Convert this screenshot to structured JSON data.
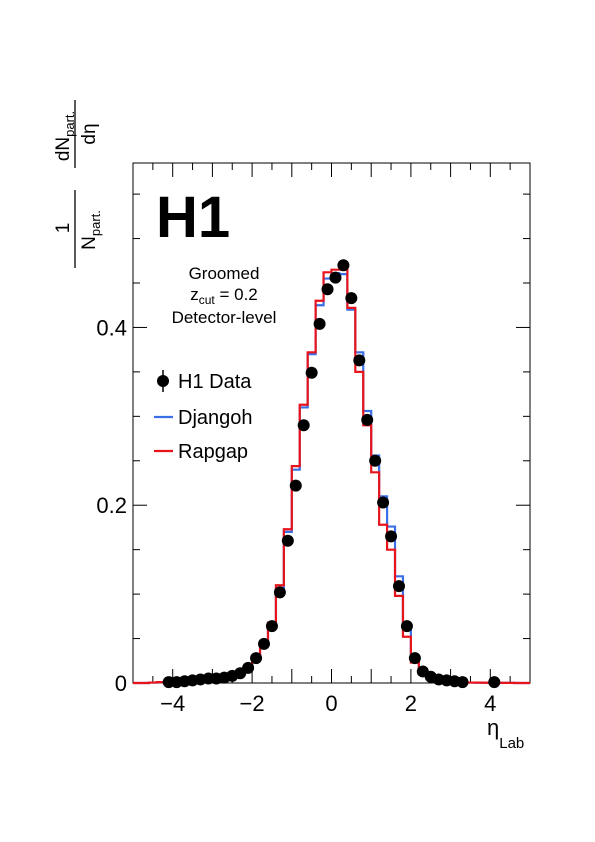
{
  "chart_data": {
    "type": "line",
    "logo": "H1",
    "annotation": {
      "line1": "Groomed",
      "line2_main": "z",
      "line2_sub": "cut",
      "line2_rest": " = 0.2",
      "line3": "Detector-level"
    },
    "xlabel": {
      "main": "η",
      "sub": "Lab"
    },
    "ylabel": {
      "frac1_num": "1",
      "frac1_den_main": "N",
      "frac1_den_sub": "part.",
      "frac2_num_main": "dN",
      "frac2_num_sub": "part.",
      "frac2_den": "dη"
    },
    "xlim": [
      -5,
      5
    ],
    "ylim": [
      0,
      0.585
    ],
    "xticks": [
      -4,
      -2,
      0,
      2,
      4
    ],
    "xtick_labels": [
      "−4",
      "−2",
      "0",
      "2",
      "4"
    ],
    "yticks": [
      0,
      0.2,
      0.4
    ],
    "ytick_labels": [
      "0",
      "0.2",
      "0.4"
    ],
    "grid": false,
    "legend": {
      "placement": "top-left",
      "entries": [
        "H1 Data",
        "Djangoh",
        "Rapgap"
      ]
    },
    "colors": {
      "data": "#000000",
      "djangoh": "#3a6fe8",
      "rapgap": "#e8141c"
    },
    "bin_edges": [
      -4.6,
      -4.4,
      -4.2,
      -4.0,
      -3.8,
      -3.6,
      -3.4,
      -3.2,
      -3.0,
      -2.8,
      -2.6,
      -2.4,
      -2.2,
      -2.0,
      -1.8,
      -1.6,
      -1.4,
      -1.2,
      -1.0,
      -0.8,
      -0.6,
      -0.4,
      -0.2,
      0.0,
      0.2,
      0.4,
      0.6,
      0.8,
      1.0,
      1.2,
      1.4,
      1.6,
      1.8,
      2.0,
      2.2,
      2.4,
      2.6,
      2.8,
      3.0,
      3.2,
      3.4,
      3.6,
      3.8,
      4.0,
      4.2,
      4.4,
      4.6
    ],
    "series": [
      {
        "name": "Djangoh",
        "style": "step",
        "values": [
          0.0005,
          0.001,
          0.0015,
          0.002,
          0.003,
          0.004,
          0.005,
          0.006,
          0.007,
          0.008,
          0.01,
          0.013,
          0.018,
          0.028,
          0.042,
          0.065,
          0.107,
          0.17,
          0.24,
          0.31,
          0.37,
          0.425,
          0.455,
          0.461,
          0.46,
          0.42,
          0.372,
          0.306,
          0.256,
          0.21,
          0.176,
          0.12,
          0.06,
          0.026,
          0.01,
          0.005,
          0.003,
          0.002,
          0.001,
          0.0008,
          0.0005,
          0.0004,
          0.0003,
          0.0002,
          0.0001,
          0.0001
        ]
      },
      {
        "name": "Rapgap",
        "style": "step",
        "values": [
          0.0005,
          0.001,
          0.0015,
          0.002,
          0.003,
          0.004,
          0.005,
          0.006,
          0.007,
          0.008,
          0.01,
          0.013,
          0.019,
          0.03,
          0.045,
          0.068,
          0.11,
          0.173,
          0.244,
          0.313,
          0.372,
          0.43,
          0.462,
          0.465,
          0.465,
          0.422,
          0.35,
          0.29,
          0.237,
          0.178,
          0.15,
          0.098,
          0.052,
          0.023,
          0.01,
          0.005,
          0.003,
          0.002,
          0.001,
          0.0008,
          0.0005,
          0.0004,
          0.0003,
          0.0002,
          0.0001,
          0.0001
        ]
      }
    ],
    "data_points": {
      "name": "H1 Data",
      "x": [
        -4.1,
        -3.9,
        -3.7,
        -3.5,
        -3.3,
        -3.1,
        -2.9,
        -2.7,
        -2.5,
        -2.3,
        -2.1,
        -1.9,
        -1.7,
        -1.5,
        -1.3,
        -1.1,
        -0.9,
        -0.7,
        -0.5,
        -0.3,
        -0.1,
        0.1,
        0.3,
        0.5,
        0.7,
        0.9,
        1.1,
        1.3,
        1.5,
        1.7,
        1.9,
        2.1,
        2.3,
        2.5,
        2.7,
        2.9,
        3.1,
        3.3,
        4.1
      ],
      "y": [
        0.001,
        0.001,
        0.002,
        0.003,
        0.004,
        0.005,
        0.005,
        0.006,
        0.008,
        0.011,
        0.017,
        0.028,
        0.044,
        0.064,
        0.102,
        0.16,
        0.222,
        0.29,
        0.349,
        0.404,
        0.443,
        0.456,
        0.47,
        0.433,
        0.363,
        0.296,
        0.25,
        0.203,
        0.165,
        0.109,
        0.064,
        0.028,
        0.013,
        0.007,
        0.004,
        0.003,
        0.002,
        0.001,
        0.001
      ]
    }
  }
}
